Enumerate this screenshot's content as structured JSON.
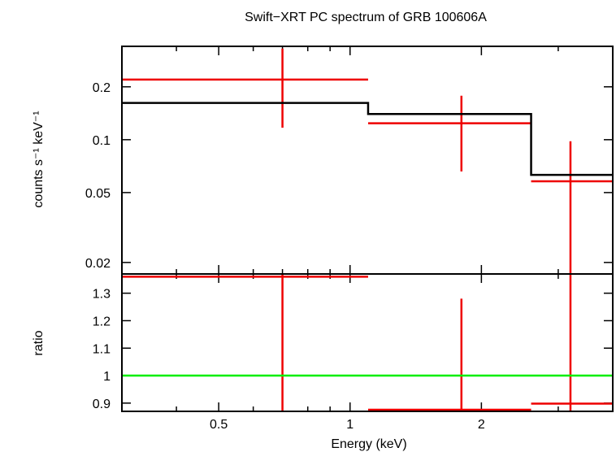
{
  "chart_data": [
    {
      "type": "line",
      "title": "Swift−XRT PC spectrum of GRB 100606A",
      "ylabel": "counts s⁻¹ keV⁻¹",
      "xscale": "log",
      "yscale": "log",
      "xlim": [
        0.3,
        4.0
      ],
      "ylim": [
        0.0172,
        0.34
      ],
      "y_ticks": [
        {
          "value": 0.02,
          "label": "0.02"
        },
        {
          "value": 0.05,
          "label": "0.05"
        },
        {
          "value": 0.1,
          "label": "0.1"
        },
        {
          "value": 0.2,
          "label": "0.2"
        }
      ],
      "series": [
        {
          "kind": "data_points",
          "color": "#ee0000",
          "points": [
            {
              "x": 0.7,
              "xlo": 0.3,
              "xhi": 1.1,
              "y": 0.22,
              "ylo": 0.117,
              "yhi": 0.33
            },
            {
              "x": 1.8,
              "xlo": 1.1,
              "xhi": 2.6,
              "y": 0.124,
              "ylo": 0.066,
              "yhi": 0.178
            },
            {
              "x": 3.2,
              "xlo": 2.6,
              "xhi": 4.0,
              "y": 0.058,
              "ylo": 0.0172,
              "yhi": 0.098
            }
          ]
        },
        {
          "kind": "model_step",
          "color": "#000000",
          "steps": [
            {
              "xlo": 0.3,
              "xhi": 1.1,
              "y": 0.162
            },
            {
              "xlo": 1.1,
              "xhi": 2.6,
              "y": 0.14
            },
            {
              "xlo": 2.6,
              "xhi": 4.0,
              "y": 0.063
            }
          ]
        }
      ]
    },
    {
      "type": "line",
      "xlabel": "Energy (keV)",
      "ylabel": "ratio",
      "xscale": "log",
      "xlim": [
        0.3,
        4.0
      ],
      "ylim": [
        0.87,
        1.37
      ],
      "x_ticks": [
        {
          "value": 0.5,
          "label": "0.5"
        },
        {
          "value": 1,
          "label": "1"
        },
        {
          "value": 2,
          "label": "2"
        }
      ],
      "y_ticks": [
        {
          "value": 0.9,
          "label": "0.9"
        },
        {
          "value": 1.0,
          "label": "1"
        },
        {
          "value": 1.1,
          "label": "1.1"
        },
        {
          "value": 1.2,
          "label": "1.2"
        },
        {
          "value": 1.3,
          "label": "1.3"
        }
      ],
      "series": [
        {
          "kind": "data_points",
          "color": "#ee0000",
          "points": [
            {
              "x": 0.7,
              "xlo": 0.3,
              "xhi": 1.1,
              "y": 1.36,
              "ylo": 0.87,
              "yhi": 1.37
            },
            {
              "x": 1.8,
              "xlo": 1.1,
              "xhi": 2.6,
              "y": 0.876,
              "ylo": 0.87,
              "yhi": 1.28
            },
            {
              "x": 3.2,
              "xlo": 2.6,
              "xhi": 4.0,
              "y": 0.898,
              "ylo": 0.87,
              "yhi": 1.37
            }
          ]
        },
        {
          "kind": "reference_line",
          "color": "#00ee00",
          "y": 1.0
        }
      ]
    }
  ]
}
